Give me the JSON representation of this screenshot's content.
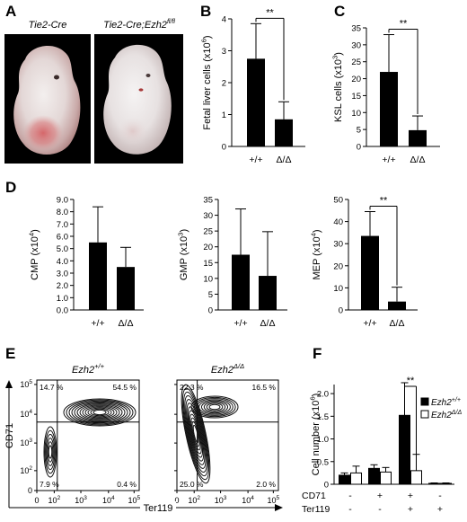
{
  "figure": {
    "panel_labels": [
      "A",
      "B",
      "C",
      "D",
      "E",
      "F"
    ]
  },
  "panel_a": {
    "left_title": "Tie2-Cre",
    "right_title_main": "Tie2-Cre;Ezh2",
    "right_title_sup": "fl/fl"
  },
  "panel_e": {
    "y_label": "CD71",
    "x_label": "Ter119",
    "x_ticks": [
      "0",
      "10",
      "10",
      "10",
      "10"
    ],
    "x_tick_sups": [
      "",
      "2",
      "3",
      "4",
      "5"
    ],
    "y_ticks": [
      "0",
      "10",
      "10",
      "10",
      "10"
    ],
    "y_tick_sups": [
      "",
      "2",
      "3",
      "4",
      "5"
    ],
    "plots": [
      {
        "title_main": "Ezh2",
        "title_sup": "+/+",
        "q_tl": "14.7 %",
        "q_tr": "54.5 %",
        "q_bl": "7.9 %",
        "q_br": "0.4 %"
      },
      {
        "title_main": "Ezh2",
        "title_sup": "Δ/Δ",
        "q_tl": "22.3 %",
        "q_tr": "16.5 %",
        "q_bl": "25.0 %",
        "q_br": "2.0 %"
      }
    ]
  },
  "chart_data": [
    {
      "id": "B",
      "type": "bar",
      "categories": [
        "+/+",
        "Δ/Δ"
      ],
      "values": [
        2.75,
        0.85
      ],
      "errors": [
        1.1,
        0.55
      ],
      "ylabel": "Fetal liver cells (x10^6)",
      "ylabel_main": "Fetal liver cells (x10",
      "ylabel_sup": "6",
      "ylabel_end": ")",
      "ylim": [
        0,
        4
      ],
      "yticks": [
        "0",
        "1",
        "2",
        "3",
        "4"
      ],
      "significance": "**"
    },
    {
      "id": "C",
      "type": "bar",
      "categories": [
        "+/+",
        "Δ/Δ"
      ],
      "values": [
        22,
        4.8
      ],
      "errors": [
        11,
        4.2
      ],
      "ylabel": "KSL cells (x10^3)",
      "ylabel_main": "KSL cells (x10",
      "ylabel_sup": "3",
      "ylabel_end": ")",
      "ylim": [
        0,
        35
      ],
      "yticks": [
        "0",
        "5",
        "10",
        "15",
        "20",
        "25",
        "30",
        "35"
      ],
      "significance": "**"
    },
    {
      "id": "D1",
      "type": "bar",
      "categories": [
        "+/+",
        "Δ/Δ"
      ],
      "values": [
        5.5,
        3.5
      ],
      "errors": [
        2.9,
        1.6
      ],
      "ylabel": "CMP (x10^4)",
      "ylabel_main": "CMP (x10",
      "ylabel_sup": "4",
      "ylabel_end": ")",
      "ylim": [
        0,
        9
      ],
      "yticks": [
        "0.0",
        "1.0",
        "2.0",
        "3.0",
        "4.0",
        "5.0",
        "6.0",
        "7.0",
        "8.0",
        "9.0"
      ],
      "significance": ""
    },
    {
      "id": "D2",
      "type": "bar",
      "categories": [
        "+/+",
        "Δ/Δ"
      ],
      "values": [
        17.5,
        10.8
      ],
      "errors": [
        14.5,
        14.0
      ],
      "ylabel": "GMP (x10^3)",
      "ylabel_main": "GMP (x10",
      "ylabel_sup": "3",
      "ylabel_end": ")",
      "ylim": [
        0,
        35
      ],
      "yticks": [
        "0",
        "5",
        "10",
        "15",
        "20",
        "25",
        "30",
        "35"
      ],
      "significance": ""
    },
    {
      "id": "D3",
      "type": "bar",
      "categories": [
        "+/+",
        "Δ/Δ"
      ],
      "values": [
        33.5,
        3.8
      ],
      "errors": [
        11,
        6.5
      ],
      "ylabel": "MEP (x10^4)",
      "ylabel_main": "MEP (x10",
      "ylabel_sup": "4",
      "ylabel_end": ")",
      "ylim": [
        0,
        50
      ],
      "yticks": [
        "0",
        "10",
        "20",
        "30",
        "40",
        "50"
      ],
      "significance": "**"
    },
    {
      "id": "F",
      "type": "bar",
      "ylabel": "Cell number (x10^6)",
      "ylabel_main": "Cell number (x10",
      "ylabel_sup": "6",
      "ylabel_end": ")",
      "ylim": [
        0,
        2.2
      ],
      "yticks": [
        "0",
        "0.5",
        "1.0",
        "1.5",
        "2.0"
      ],
      "row_labels": [
        "CD71",
        "Ter119"
      ],
      "group_markers": [
        [
          "-",
          "-"
        ],
        [
          "+",
          "-"
        ],
        [
          "+",
          "+"
        ],
        [
          "-",
          "+"
        ]
      ],
      "series": [
        {
          "name_main": "Ezh2",
          "name_sup": "+/+",
          "color": "#000000",
          "values": [
            0.2,
            0.35,
            1.52,
            0.02
          ],
          "errors": [
            0.05,
            0.08,
            0.72,
            0.01
          ]
        },
        {
          "name_main": "Ezh2",
          "name_sup": "Δ/Δ",
          "color": "#ffffff",
          "values": [
            0.25,
            0.27,
            0.3,
            0.02
          ],
          "errors": [
            0.15,
            0.1,
            0.36,
            0.01
          ]
        }
      ],
      "significance": "**",
      "legend": "top-right"
    }
  ]
}
